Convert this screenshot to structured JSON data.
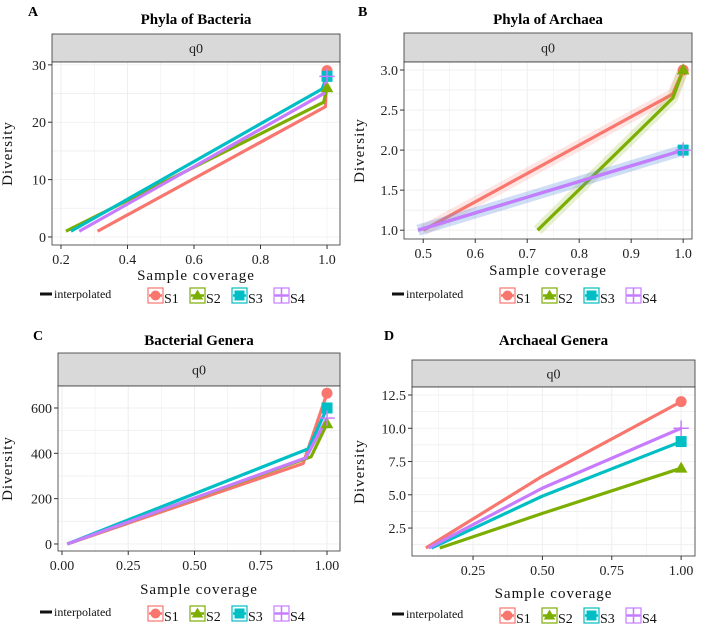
{
  "colors": {
    "S1": "#F8766D",
    "S2": "#7CAE00",
    "S3": "#00BFC4",
    "S4": "#C77CFF"
  },
  "legend": {
    "line_label": "interpolated",
    "samples": [
      "S1",
      "S2",
      "S3",
      "S4"
    ],
    "shapes": [
      "circle",
      "triangle",
      "square",
      "cross"
    ]
  },
  "chart_data": [
    {
      "panel": "A",
      "title": "Phyla of Bacteria",
      "type": "line",
      "facet": "q0",
      "xlabel": "Sample coverage",
      "ylabel": "Diversity",
      "xlim": [
        0.173,
        1.039
      ],
      "ylim": [
        -1.4,
        30.5
      ],
      "xticks": [
        0.2,
        0.4,
        0.6,
        0.8,
        1.0
      ],
      "xtick_labels": [
        "0.2",
        "0.4",
        "0.6",
        "0.8",
        "1.0"
      ],
      "yticks": [
        0,
        10,
        20,
        30
      ],
      "ytick_labels": [
        "0",
        "10",
        "20",
        "30"
      ],
      "series": [
        {
          "name": "S1",
          "x": [
            0.31,
            0.995,
            1.0
          ],
          "y": [
            1,
            22.7,
            29
          ]
        },
        {
          "name": "S2",
          "x": [
            0.215,
            0.99,
            1.0
          ],
          "y": [
            1,
            23.5,
            26
          ]
        },
        {
          "name": "S3",
          "x": [
            0.23,
            0.985,
            1.0
          ],
          "y": [
            1,
            25.8,
            28
          ]
        },
        {
          "name": "S4",
          "x": [
            0.255,
            0.99,
            1.0
          ],
          "y": [
            1,
            25,
            28
          ]
        }
      ]
    },
    {
      "panel": "B",
      "title": "Phyla of Archaea",
      "type": "line",
      "facet": "q0",
      "xlabel": "Sample coverage",
      "ylabel": "Diversity",
      "xlim": [
        0.463,
        1.017
      ],
      "ylim": [
        0.89,
        3.1
      ],
      "xticks": [
        0.5,
        0.6,
        0.7,
        0.8,
        0.9,
        1.0
      ],
      "xtick_labels": [
        "0.5",
        "0.6",
        "0.7",
        "0.8",
        "0.9",
        "1.0"
      ],
      "yticks": [
        1.0,
        1.5,
        2.0,
        2.5,
        3.0
      ],
      "ytick_labels": [
        "1.0",
        "1.5",
        "2.0",
        "2.5",
        "3.0"
      ],
      "ribbon": true,
      "series": [
        {
          "name": "S1",
          "x": [
            0.5,
            0.98,
            1.0
          ],
          "y": [
            1,
            2.7,
            3
          ]
        },
        {
          "name": "S2",
          "x": [
            0.72,
            0.98,
            1.0
          ],
          "y": [
            1,
            2.65,
            3
          ]
        },
        {
          "name": "S3",
          "x": [
            0.49,
            1.0
          ],
          "y": [
            1,
            2
          ]
        },
        {
          "name": "S4",
          "x": [
            0.49,
            1.0
          ],
          "y": [
            1,
            2
          ]
        }
      ]
    },
    {
      "panel": "C",
      "title": "Bacterial Genera",
      "type": "line",
      "facet": "q0",
      "xlabel": "Sample coverage",
      "ylabel": "Diversity",
      "xlim": [
        -0.015,
        1.049
      ],
      "ylim": [
        -31,
        697
      ],
      "xticks": [
        0,
        0.25,
        0.5,
        0.75,
        1.0
      ],
      "xtick_labels": [
        "0.00",
        "0.25",
        "0.50",
        "0.75",
        "1.00"
      ],
      "yticks": [
        0,
        200,
        400,
        600
      ],
      "ytick_labels": [
        "0",
        "200",
        "400",
        "600"
      ],
      "series": [
        {
          "name": "S1",
          "x": [
            0.02,
            0.91,
            1.0
          ],
          "y": [
            0,
            355,
            665
          ]
        },
        {
          "name": "S2",
          "x": [
            0.02,
            0.94,
            1.0
          ],
          "y": [
            0,
            385,
            530
          ]
        },
        {
          "name": "S3",
          "x": [
            0.02,
            0.93,
            1.0
          ],
          "y": [
            0,
            420,
            600
          ]
        },
        {
          "name": "S4",
          "x": [
            0.02,
            0.92,
            1.0
          ],
          "y": [
            0,
            380,
            555
          ]
        }
      ]
    },
    {
      "panel": "D",
      "title": "Archaeal Genera",
      "type": "line",
      "facet": "q0",
      "xlabel": "Sample coverage",
      "ylabel": "Diversity",
      "xlim": [
        0.03,
        1.05
      ],
      "ylim": [
        0.4,
        13.1
      ],
      "xticks": [
        0.25,
        0.5,
        0.75,
        1.0
      ],
      "xtick_labels": [
        "0.25",
        "0.50",
        "0.75",
        "1.00"
      ],
      "yticks": [
        2.5,
        5.0,
        7.5,
        10.0,
        12.5
      ],
      "ytick_labels": [
        "2.5",
        "5.0",
        "7.5",
        "10.0",
        "12.5"
      ],
      "series": [
        {
          "name": "S1",
          "x": [
            0.08,
            0.5,
            1.0
          ],
          "y": [
            1,
            6.4,
            12
          ]
        },
        {
          "name": "S2",
          "x": [
            0.13,
            0.5,
            1.0
          ],
          "y": [
            1,
            3.6,
            7
          ]
        },
        {
          "name": "S3",
          "x": [
            0.1,
            0.5,
            1.0
          ],
          "y": [
            1,
            4.9,
            9
          ]
        },
        {
          "name": "S4",
          "x": [
            0.09,
            0.5,
            1.0
          ],
          "y": [
            1,
            5.5,
            10
          ]
        }
      ]
    }
  ]
}
